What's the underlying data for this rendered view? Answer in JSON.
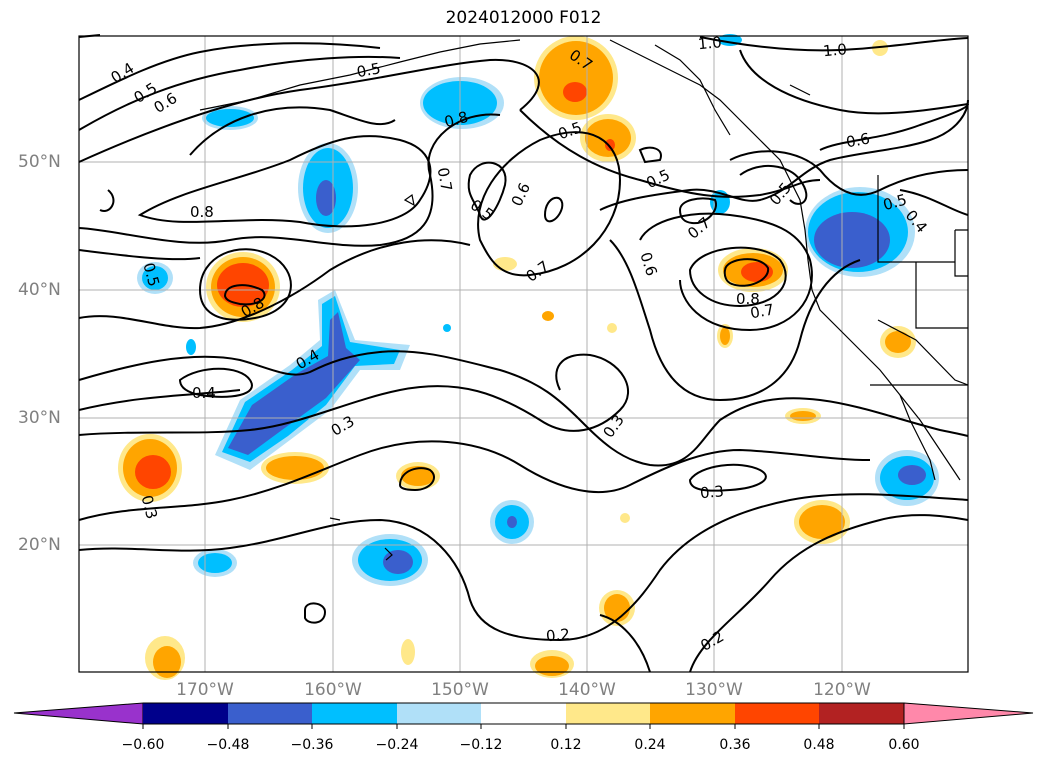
{
  "title": "2024012000 F012",
  "lat_labels": [
    "50°N",
    "40°N",
    "30°N",
    "20°N"
  ],
  "lon_labels": [
    "170°W",
    "160°W",
    "150°W",
    "140°W",
    "130°W",
    "120°W"
  ],
  "contour_labels": [
    "0.4",
    "0.5",
    "0.6",
    "0.5",
    "0.8",
    "0.7",
    "0.5",
    "1.0",
    "1.0",
    "0.6",
    "0.8",
    "0.7",
    "0.5",
    "0.6",
    "0.5",
    "0.7",
    "0.7",
    "0.6",
    "0.5",
    "0.8",
    "0.7",
    "0.8",
    "0.5",
    "0.4",
    "0.4",
    "0.3",
    "0.3",
    "0.3",
    "0.3",
    "0.2",
    "0.2",
    "0.5",
    "0.4"
  ],
  "colorbar": {
    "ticks": [
      "−0.60",
      "−0.48",
      "−0.36",
      "−0.24",
      "−0.12",
      "0.12",
      "0.24",
      "0.36",
      "0.48",
      "0.60"
    ],
    "colors": [
      "#9932cc",
      "#00008b",
      "#3a5fcd",
      "#00bfff",
      "#b0e0f8",
      "#ffffff",
      "#ffe88a",
      "#ffa500",
      "#ff4500",
      "#b22222",
      "#ff88aa"
    ]
  },
  "colors": {
    "neg_strong": "#3a5fcd",
    "neg_mid": "#00bfff",
    "neg_light": "#b0e0f8",
    "pos_light": "#ffe88a",
    "pos_mid": "#ffa500",
    "pos_strong": "#ff4500",
    "grid": "#b0b0b0",
    "axis_label": "#808080"
  }
}
